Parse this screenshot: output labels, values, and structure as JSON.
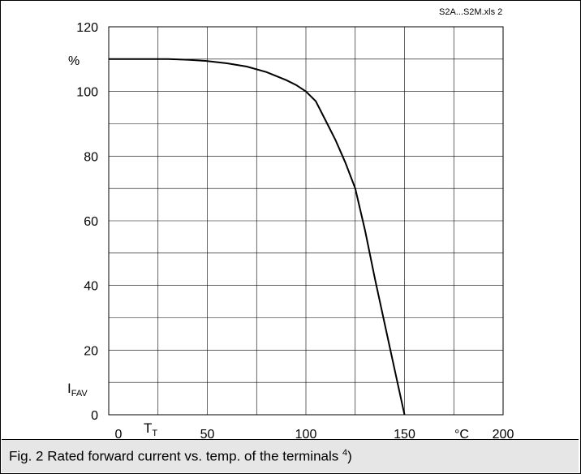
{
  "chart_data": {
    "type": "line",
    "file_ref": "S2A...S2M.xls 2",
    "x": [
      0,
      10,
      20,
      30,
      40,
      50,
      60,
      70,
      80,
      90,
      95,
      100,
      105,
      110,
      115,
      120,
      125,
      130,
      135,
      140,
      145,
      150
    ],
    "series": [
      {
        "values": [
          110,
          110,
          110,
          110,
          109.8,
          109.4,
          108.7,
          107.7,
          106,
          103.5,
          102,
          100,
          97,
          91,
          85,
          78,
          70,
          57,
          42,
          28,
          14,
          0
        ]
      }
    ],
    "xlim": [
      0,
      200
    ],
    "ylim": [
      0,
      120
    ],
    "x_ticks": [
      0,
      50,
      100,
      150,
      200
    ],
    "y_ticks": [
      0,
      20,
      40,
      60,
      80,
      100,
      120
    ],
    "grid": true,
    "x_grid_step": 25,
    "y_grid_step": 10,
    "ylabel_unit": "%",
    "xlabel_unit": "°C",
    "ylabel_symbol_main": "I",
    "ylabel_symbol_sub": "FAV",
    "xlabel_symbol_main": "T",
    "xlabel_symbol_sub": "T",
    "caption": "Fig. 2 Rated forward current vs. temp. of the terminals",
    "caption_sup": "4",
    "caption_suffix": ")"
  }
}
